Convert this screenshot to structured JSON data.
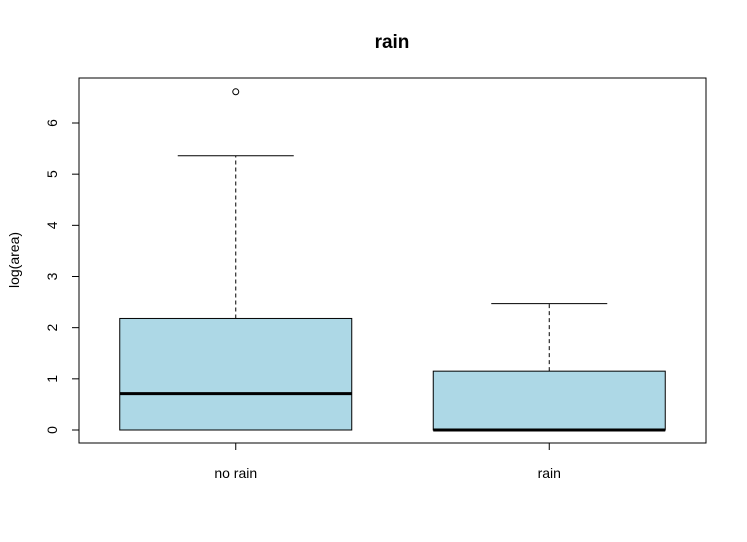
{
  "chart_data": {
    "type": "boxplot",
    "title": "rain",
    "xlabel": "",
    "ylabel": "log(area)",
    "ylim": [
      -0.25,
      6.9
    ],
    "yticks": [
      0,
      1,
      2,
      3,
      4,
      5,
      6
    ],
    "ytick_labels": [
      "0",
      "1",
      "2",
      "3",
      "4",
      "5",
      "6"
    ],
    "box_color": "#ADD8E6",
    "categories": [
      "no rain",
      "rain"
    ],
    "boxes": [
      {
        "label": "no rain",
        "whisker_low": 0,
        "q1": 0,
        "median": 0.71,
        "q3": 2.18,
        "whisker_high": 5.36,
        "outliers": [
          6.61
        ]
      },
      {
        "label": "rain",
        "whisker_low": 0,
        "q1": 0,
        "median": 0,
        "q3": 1.15,
        "whisker_high": 2.47,
        "outliers": []
      }
    ]
  }
}
